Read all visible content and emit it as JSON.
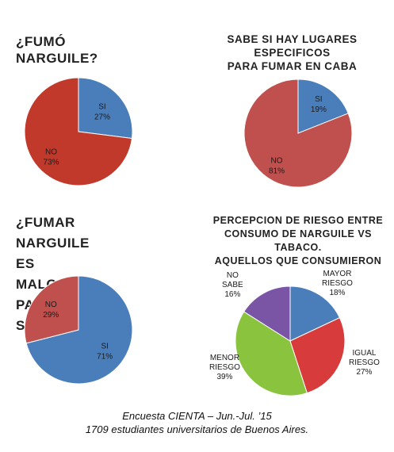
{
  "chart_data": [
    {
      "type": "pie",
      "title_lines": [
        "¿FUMÓ NARGUILE?"
      ],
      "slices": [
        {
          "label": "SI",
          "value": 27,
          "pct_label": "27%",
          "color": "#4a7ebb"
        },
        {
          "label": "NO",
          "value": 73,
          "pct_label": "73%",
          "color": "#c0392b"
        }
      ]
    },
    {
      "type": "pie",
      "title_lines": [
        "SABE SI HAY LUGARES ESPECIFICOS",
        "PARA FUMAR EN CABA"
      ],
      "slices": [
        {
          "label": "SI",
          "value": 19,
          "pct_label": "19%",
          "color": "#4a7ebb"
        },
        {
          "label": "NO",
          "value": 81,
          "pct_label": "81%",
          "color": "#c0504d"
        }
      ]
    },
    {
      "type": "pie",
      "title_lines": [
        "¿FUMAR NARGUILE ES",
        "MALO PARA SU SALUD?"
      ],
      "slices": [
        {
          "label": "SI",
          "value": 71,
          "pct_label": "71%",
          "color": "#4a7ebb"
        },
        {
          "label": "NO",
          "value": 29,
          "pct_label": "29%",
          "color": "#c0504d"
        }
      ]
    },
    {
      "type": "pie",
      "title_lines": [
        "PERCEPCION DE RIESGO ENTRE",
        "CONSUMO DE NARGUILE VS TABACO.",
        "AQUELLOS QUE CONSUMIERON"
      ],
      "slices": [
        {
          "label": "MAYOR RIESGO",
          "label_lines": [
            "MAYOR",
            "RIESGO"
          ],
          "value": 18,
          "pct_label": "18%",
          "color": "#4a7ebb"
        },
        {
          "label": "IGUAL RIESGO",
          "label_lines": [
            "IGUAL",
            "RIESGO"
          ],
          "value": 27,
          "pct_label": "27%",
          "color": "#d83b3b"
        },
        {
          "label": "MENOR RIESGO",
          "label_lines": [
            "MENOR",
            "RIESGO"
          ],
          "value": 39,
          "pct_label": "39%",
          "color": "#8ac43f"
        },
        {
          "label": "NO SABE",
          "label_lines": [
            "NO SABE"
          ],
          "value": 16,
          "pct_label": "16%",
          "color": "#7a55a6"
        }
      ]
    }
  ],
  "footer": {
    "line1": "Encuesta CIENTA – Jun.-Jul. ’15",
    "line2": "1709 estudiantes universitarios de Buenos Aires."
  }
}
